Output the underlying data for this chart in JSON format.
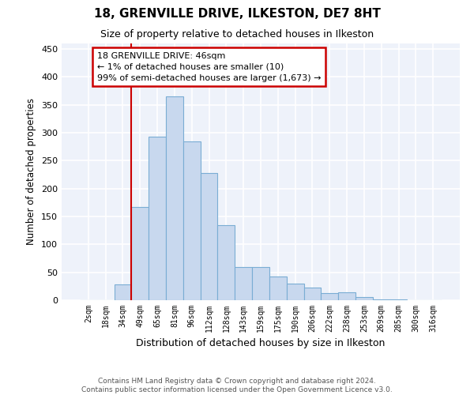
{
  "title": "18, GRENVILLE DRIVE, ILKESTON, DE7 8HT",
  "subtitle": "Size of property relative to detached houses in Ilkeston",
  "xlabel": "Distribution of detached houses by size in Ilkeston",
  "ylabel": "Number of detached properties",
  "bar_color": "#c8d8ee",
  "bar_edge_color": "#7aadd4",
  "background_color": "#eef2fa",
  "grid_color": "#ffffff",
  "annotation_line_color": "#cc0000",
  "annotation_box_edgecolor": "#cc0000",
  "annotation_text": "18 GRENVILLE DRIVE: 46sqm\n← 1% of detached houses are smaller (10)\n99% of semi-detached houses are larger (1,673) →",
  "categories": [
    "2sqm",
    "18sqm",
    "34sqm",
    "49sqm",
    "65sqm",
    "81sqm",
    "96sqm",
    "112sqm",
    "128sqm",
    "143sqm",
    "159sqm",
    "175sqm",
    "190sqm",
    "206sqm",
    "222sqm",
    "238sqm",
    "253sqm",
    "269sqm",
    "285sqm",
    "300sqm",
    "316sqm"
  ],
  "values": [
    0,
    0,
    28,
    167,
    293,
    365,
    285,
    228,
    135,
    60,
    60,
    43,
    30,
    23,
    13,
    14,
    5,
    2,
    1,
    0,
    0
  ],
  "ylim": [
    0,
    460
  ],
  "yticks": [
    0,
    50,
    100,
    150,
    200,
    250,
    300,
    350,
    400,
    450
  ],
  "footer_text": "Contains HM Land Registry data © Crown copyright and database right 2024.\nContains public sector information licensed under the Open Government Licence v3.0.",
  "vline_index": 3,
  "figsize": [
    6.0,
    5.0
  ],
  "dpi": 100
}
